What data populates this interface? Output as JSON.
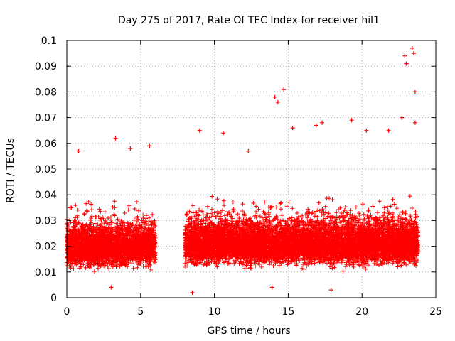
{
  "chart_data": {
    "type": "scatter",
    "title": "Day 275 of 2017, Rate Of TEC Index for receiver hil1",
    "xlabel": "GPS time / hours",
    "ylabel": "ROTI / TECUs",
    "xlim": [
      0,
      25
    ],
    "ylim": [
      0,
      0.1
    ],
    "x_ticks": [
      0,
      5,
      10,
      15,
      20,
      25
    ],
    "x_tick_labels": [
      "0",
      "5",
      "10",
      "15",
      "20",
      "25"
    ],
    "y_ticks": [
      0,
      0.01,
      0.02,
      0.03,
      0.04,
      0.05,
      0.06,
      0.07,
      0.08,
      0.09,
      0.1
    ],
    "y_tick_labels": [
      "0",
      "0.01",
      "0.02",
      "0.03",
      "0.04",
      "0.05",
      "0.06",
      "0.07",
      "0.08",
      "0.09",
      "0.1"
    ],
    "grid": true,
    "marker": "+",
    "series_color": "#ff0000",
    "series": [
      {
        "name": "ROTI",
        "segments": [
          {
            "x_range": [
              0.0,
              6.0
            ],
            "typical_range": [
              0.006,
              0.045
            ],
            "median": 0.02
          },
          {
            "x_range": [
              8.0,
              23.8
            ],
            "typical_range": [
              0.005,
              0.05
            ],
            "median": 0.021
          }
        ],
        "data_gap": [
          6.0,
          8.0
        ],
        "notable_points": [
          {
            "x": 0.3,
            "y": 0.035
          },
          {
            "x": 0.8,
            "y": 0.057
          },
          {
            "x": 3.3,
            "y": 0.062
          },
          {
            "x": 4.3,
            "y": 0.058
          },
          {
            "x": 5.6,
            "y": 0.059
          },
          {
            "x": 9.0,
            "y": 0.065
          },
          {
            "x": 10.6,
            "y": 0.064
          },
          {
            "x": 12.3,
            "y": 0.057
          },
          {
            "x": 14.1,
            "y": 0.078
          },
          {
            "x": 14.3,
            "y": 0.076
          },
          {
            "x": 14.7,
            "y": 0.081
          },
          {
            "x": 15.3,
            "y": 0.066
          },
          {
            "x": 16.9,
            "y": 0.067
          },
          {
            "x": 17.3,
            "y": 0.068
          },
          {
            "x": 19.3,
            "y": 0.069
          },
          {
            "x": 20.3,
            "y": 0.065
          },
          {
            "x": 21.8,
            "y": 0.065
          },
          {
            "x": 22.7,
            "y": 0.07
          },
          {
            "x": 22.9,
            "y": 0.094
          },
          {
            "x": 23.0,
            "y": 0.091
          },
          {
            "x": 23.4,
            "y": 0.097
          },
          {
            "x": 23.5,
            "y": 0.095
          },
          {
            "x": 23.6,
            "y": 0.08
          },
          {
            "x": 23.6,
            "y": 0.068
          },
          {
            "x": 8.5,
            "y": 0.002
          },
          {
            "x": 13.9,
            "y": 0.004
          },
          {
            "x": 17.9,
            "y": 0.003
          },
          {
            "x": 3.0,
            "y": 0.004
          }
        ]
      }
    ]
  }
}
